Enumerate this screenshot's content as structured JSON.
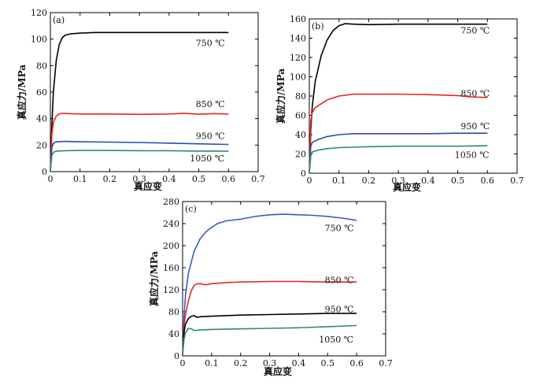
{
  "chart_data": [
    {
      "type": "line",
      "panel_label": "(a)",
      "xlabel": "真应变",
      "ylabel": "真应力/MPa",
      "xlim": [
        0,
        0.7
      ],
      "ylim": [
        0,
        120
      ],
      "xticks": [
        "0",
        "0.1",
        "0.2",
        "0.3",
        "0.4",
        "0.5",
        "0.6",
        "0.7"
      ],
      "yticks": [
        "0",
        "20",
        "40",
        "60",
        "80",
        "100",
        "120"
      ],
      "grid": false,
      "series": [
        {
          "name": "750 ℃",
          "color": "#000000",
          "x": [
            0,
            0.005,
            0.01,
            0.02,
            0.03,
            0.04,
            0.05,
            0.07,
            0.1,
            0.15,
            0.2,
            0.3,
            0.4,
            0.5,
            0.6
          ],
          "y": [
            0,
            35,
            60,
            84,
            96,
            101,
            103,
            104,
            104.5,
            105,
            105,
            105,
            105,
            105,
            105
          ],
          "label_at": [
            0.49,
            97
          ]
        },
        {
          "name": "850 ℃",
          "color": "#e8281e",
          "x": [
            0,
            0.005,
            0.01,
            0.02,
            0.03,
            0.04,
            0.06,
            0.1,
            0.2,
            0.3,
            0.4,
            0.45,
            0.5,
            0.55,
            0.6
          ],
          "y": [
            0,
            28,
            37,
            42,
            43.5,
            44,
            43.8,
            43.5,
            43.5,
            43.2,
            43.5,
            44,
            43.3,
            43.8,
            43.5
          ],
          "label_at": [
            0.49,
            51
          ]
        },
        {
          "name": "950 ℃",
          "color": "#2b4bb5",
          "x": [
            0,
            0.005,
            0.01,
            0.02,
            0.05,
            0.1,
            0.2,
            0.3,
            0.4,
            0.5,
            0.6
          ],
          "y": [
            0,
            18,
            21.5,
            22.5,
            22.8,
            22.5,
            22.3,
            22,
            21.5,
            21,
            20.5
          ],
          "label_at": [
            0.49,
            27
          ]
        },
        {
          "name": "1050 ℃",
          "color": "#2e8b7a",
          "x": [
            0,
            0.005,
            0.01,
            0.02,
            0.05,
            0.1,
            0.2,
            0.3,
            0.4,
            0.5,
            0.6
          ],
          "y": [
            0,
            12,
            14.5,
            15.5,
            15.8,
            16,
            16,
            15.8,
            15.8,
            15.5,
            15.5
          ],
          "label_at": [
            0.47,
            10
          ]
        }
      ]
    },
    {
      "type": "line",
      "panel_label": "(b)",
      "xlabel": "真应变",
      "ylabel": "真应力/MPa",
      "xlim": [
        0,
        0.7
      ],
      "ylim": [
        0,
        160
      ],
      "xticks": [
        "0",
        "0.1",
        "0.2",
        "0.3",
        "0.4",
        "0.5",
        "0.6",
        "0.7"
      ],
      "yticks": [
        "0",
        "20",
        "40",
        "60",
        "80",
        "100",
        "120",
        "140",
        "160"
      ],
      "grid": false,
      "series": [
        {
          "name": "750 ℃",
          "color": "#000000",
          "x": [
            0,
            0.005,
            0.01,
            0.02,
            0.04,
            0.06,
            0.08,
            0.1,
            0.12,
            0.15,
            0.2,
            0.3,
            0.4,
            0.5,
            0.6
          ],
          "y": [
            0,
            45,
            70,
            95,
            122,
            138,
            148,
            153,
            155,
            154.5,
            154,
            154.5,
            154.5,
            154.5,
            154.5
          ],
          "label_at": [
            0.51,
            148
          ]
        },
        {
          "name": "850 ℃",
          "color": "#e8281e",
          "x": [
            0,
            0.005,
            0.01,
            0.02,
            0.04,
            0.06,
            0.1,
            0.15,
            0.2,
            0.3,
            0.4,
            0.5,
            0.55,
            0.6
          ],
          "y": [
            0,
            55,
            63,
            68,
            72,
            76,
            80,
            82,
            82,
            82,
            81.5,
            80.5,
            79,
            78.5
          ],
          "label_at": [
            0.51,
            83
          ]
        },
        {
          "name": "950 ℃",
          "color": "#2b4bb5",
          "x": [
            0,
            0.005,
            0.01,
            0.03,
            0.06,
            0.1,
            0.15,
            0.2,
            0.3,
            0.4,
            0.5,
            0.6
          ],
          "y": [
            0,
            28,
            32,
            35,
            38,
            40,
            41,
            41,
            41,
            41,
            41.5,
            41.5
          ],
          "label_at": [
            0.51,
            49
          ]
        },
        {
          "name": "1050 ℃",
          "color": "#2e8b7a",
          "x": [
            0,
            0.005,
            0.01,
            0.03,
            0.06,
            0.1,
            0.2,
            0.3,
            0.4,
            0.5,
            0.6
          ],
          "y": [
            0,
            18,
            22,
            24,
            25.5,
            26.5,
            27.5,
            28,
            28,
            28,
            28.5
          ],
          "label_at": [
            0.49,
            19
          ]
        }
      ]
    },
    {
      "type": "line",
      "panel_label": "(c)",
      "xlabel": "真应变",
      "ylabel": "真应力/MPa",
      "xlim": [
        0,
        0.7
      ],
      "ylim": [
        0,
        280
      ],
      "xticks": [
        "0",
        "0.1",
        "0.2",
        "0.3",
        "0.4",
        "0.5",
        "0.6",
        "0.7"
      ],
      "yticks": [
        "0",
        "40",
        "80",
        "120",
        "160",
        "200",
        "240",
        "280"
      ],
      "grid": false,
      "series": [
        {
          "name": "750 ℃",
          "color": "#3a5bc7",
          "x": [
            0,
            0.005,
            0.01,
            0.02,
            0.04,
            0.06,
            0.08,
            0.1,
            0.12,
            0.15,
            0.2,
            0.25,
            0.3,
            0.35,
            0.4,
            0.45,
            0.5,
            0.55,
            0.6
          ],
          "y": [
            0,
            70,
            110,
            150,
            190,
            212,
            225,
            233,
            240,
            245,
            248,
            253,
            256,
            257,
            256,
            255,
            253,
            250,
            246
          ],
          "label_at": [
            0.49,
            232
          ]
        },
        {
          "name": "850 ℃",
          "color": "#e8281e",
          "x": [
            0,
            0.005,
            0.01,
            0.02,
            0.03,
            0.04,
            0.05,
            0.06,
            0.08,
            0.1,
            0.15,
            0.2,
            0.3,
            0.4,
            0.5,
            0.6
          ],
          "y": [
            0,
            55,
            75,
            100,
            118,
            128,
            131,
            131,
            129,
            131,
            133,
            134,
            135,
            135,
            134,
            134
          ],
          "label_at": [
            0.49,
            138
          ]
        },
        {
          "name": "950 ℃",
          "color": "#000000",
          "x": [
            0,
            0.005,
            0.01,
            0.02,
            0.03,
            0.04,
            0.05,
            0.06,
            0.1,
            0.2,
            0.3,
            0.4,
            0.5,
            0.6
          ],
          "y": [
            0,
            42,
            58,
            68,
            72,
            73,
            70,
            71,
            72,
            74,
            75,
            76,
            77,
            77
          ],
          "label_at": [
            0.49,
            85
          ]
        },
        {
          "name": "1050 ℃",
          "color": "#2e8b7a",
          "x": [
            0,
            0.005,
            0.01,
            0.02,
            0.03,
            0.04,
            0.06,
            0.1,
            0.2,
            0.3,
            0.4,
            0.5,
            0.6
          ],
          "y": [
            0,
            30,
            42,
            50,
            49,
            46,
            47,
            48,
            49,
            50,
            51,
            53,
            55
          ],
          "label_at": [
            0.47,
            30
          ]
        }
      ]
    }
  ]
}
